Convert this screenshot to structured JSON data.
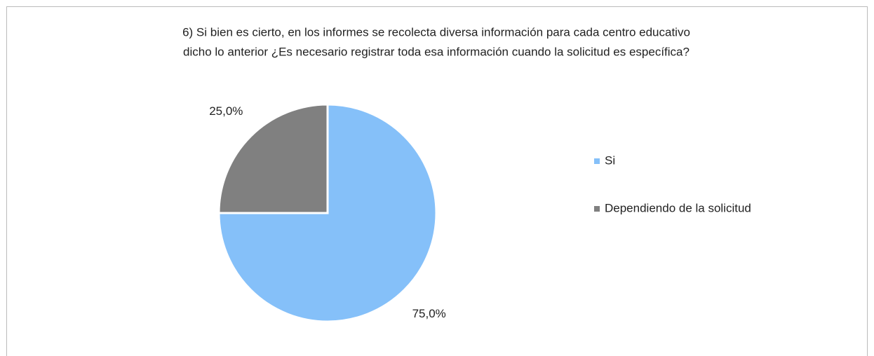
{
  "chart_data": {
    "type": "pie",
    "title": [
      "6) Si bien es cierto, en los informes se recolecta diversa información para cada centro educativo",
      "dicho lo anterior ¿Es necesario registrar toda esa información cuando la solicitud es específica?"
    ],
    "categories": [
      "Si",
      "Dependiendo de la solicitud"
    ],
    "values": [
      75,
      25
    ],
    "value_labels": [
      "75,0%",
      "25,0%"
    ],
    "colors": [
      "#85c0f9",
      "#808080"
    ],
    "legend": "right"
  }
}
